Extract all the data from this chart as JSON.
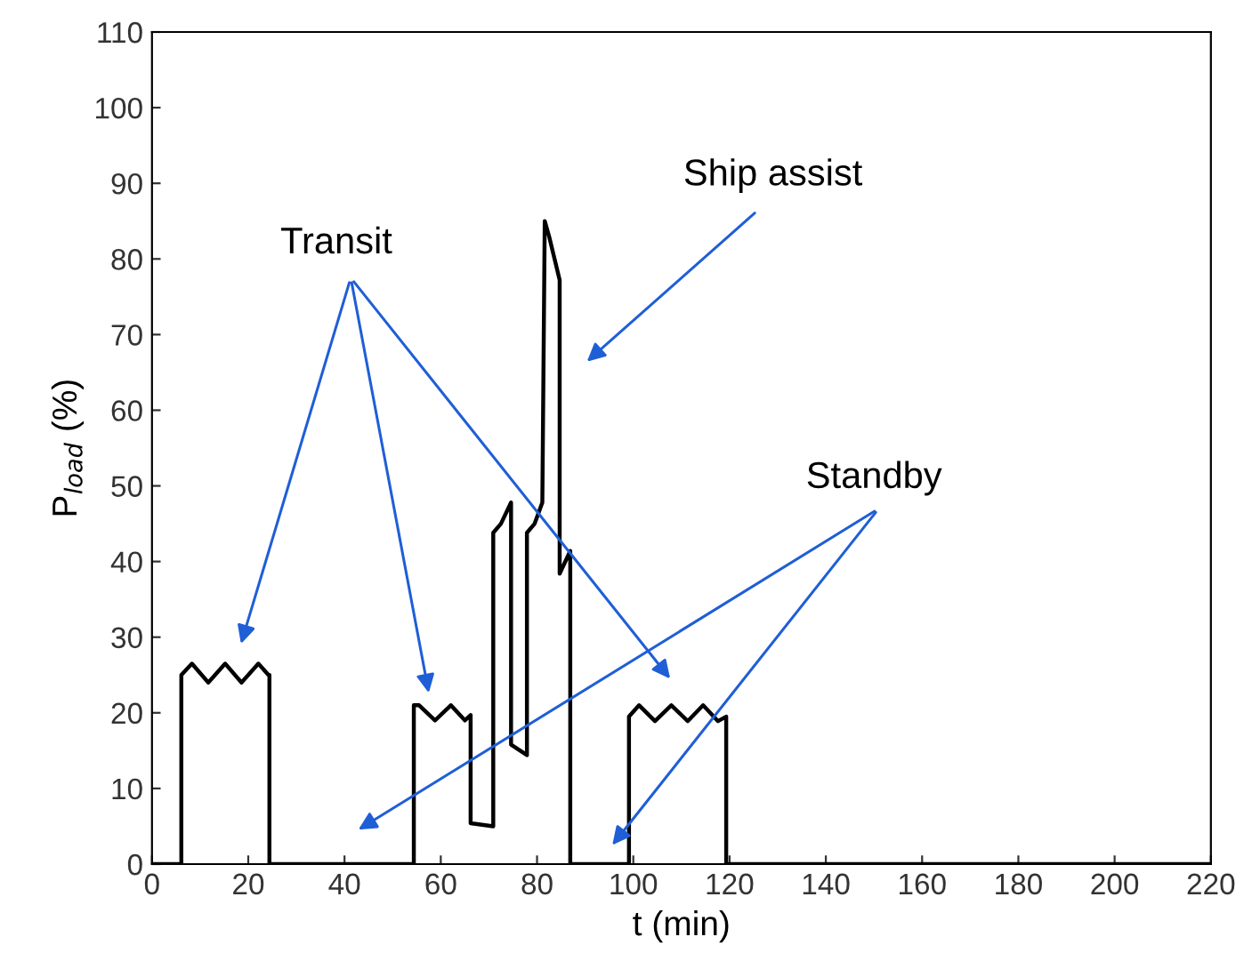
{
  "chart_data": {
    "type": "line",
    "xlabel": "t (min)",
    "ylabel": "P$_{load}$ (%)",
    "series": [
      {
        "color": "#000000",
        "x": [
          0,
          6.1,
          6.1,
          8.3,
          11.7,
          15.2,
          18.6,
          22.1,
          24.2,
          24.4,
          24.4,
          54.4,
          54.4,
          55.5,
          58.8,
          62.1,
          65,
          66.2,
          66.2,
          70.9,
          70.9,
          72.5,
          74.6,
          74.6,
          77.9,
          77.9,
          79.5,
          81.1,
          81.6,
          82.5,
          84.7,
          84.7,
          86.9,
          86.9,
          99.1,
          99.1,
          101.2,
          104.5,
          107.9,
          111.3,
          114.5,
          117.6,
          119.3,
          119.3,
          220
        ],
        "values": [
          0,
          0,
          25,
          26.5,
          24,
          26.5,
          24,
          26.5,
          25,
          25,
          0,
          0,
          21,
          21,
          19,
          21,
          19,
          19.7,
          5.4,
          5,
          43.8,
          45,
          47.8,
          15.8,
          14.4,
          43.8,
          45,
          47.8,
          85,
          83,
          77.2,
          38.4,
          41.4,
          0,
          0,
          19.5,
          21,
          18.9,
          21,
          18.9,
          21,
          18.9,
          19.5,
          0,
          0
        ]
      }
    ],
    "xlim": [
      0,
      220
    ],
    "xticks": [
      0,
      20,
      40,
      60,
      80,
      100,
      120,
      140,
      160,
      180,
      200,
      220
    ],
    "ylim": [
      0,
      110
    ],
    "yticks": [
      0,
      10,
      20,
      30,
      40,
      50,
      60,
      70,
      80,
      90,
      100,
      110
    ],
    "grid": false,
    "legend": false,
    "line_style": "solid",
    "marker": "none",
    "annotations": [
      "Transit",
      "Ship assist",
      "Standby"
    ]
  }
}
